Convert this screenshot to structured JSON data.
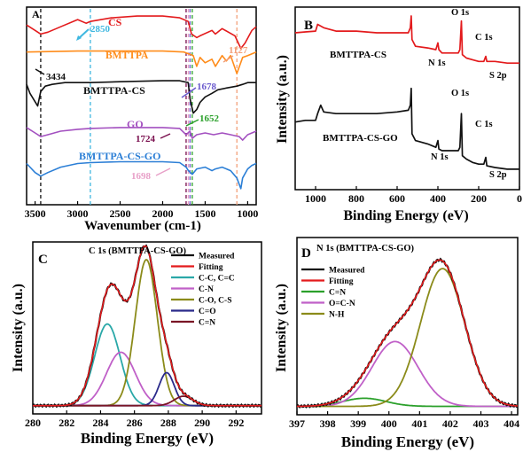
{
  "chart_data": [
    {
      "type": "line",
      "panel": "A",
      "xlabel": "Wavenumber (cm-1)",
      "ylabel": "",
      "xlim": [
        3600,
        900
      ],
      "xticks": [
        3500,
        3000,
        2500,
        2000,
        1500,
        1000
      ],
      "reference_lines": [
        {
          "x": 3434,
          "color": "#111111"
        },
        {
          "x": 2850,
          "color": "#3fb7e0"
        },
        {
          "x": 1724,
          "color": "#7a0f4e"
        },
        {
          "x": 1698,
          "color": "#e8a0c8"
        },
        {
          "x": 1652,
          "color": "#2ba02b"
        },
        {
          "x": 1678,
          "color": "#6a5acd"
        },
        {
          "x": 1127,
          "color": "#f3a07a"
        }
      ],
      "series": [
        {
          "name": "CS",
          "color": "#e31a1c",
          "offset": 0.93,
          "x": [
            3600,
            3500,
            3434,
            3350,
            3200,
            3000,
            2900,
            2850,
            2600,
            2300,
            2000,
            1800,
            1700,
            1660,
            1600,
            1560,
            1420,
            1380,
            1300,
            1150,
            1080,
            1030,
            950,
            900
          ],
          "y": [
            0.93,
            0.9,
            0.88,
            0.89,
            0.92,
            0.96,
            0.94,
            0.95,
            0.97,
            0.98,
            0.98,
            0.97,
            0.95,
            0.88,
            0.86,
            0.87,
            0.9,
            0.88,
            0.91,
            0.87,
            0.8,
            0.83,
            0.9,
            0.92
          ]
        },
        {
          "name": "BMTTPA",
          "color": "#ff8c1a",
          "offset": 0.78,
          "x": [
            3600,
            3000,
            2500,
            2000,
            1750,
            1640,
            1600,
            1560,
            1500,
            1420,
            1380,
            1300,
            1250,
            1200,
            1127,
            1060,
            1000,
            950,
            900
          ],
          "y": [
            0.78,
            0.785,
            0.785,
            0.785,
            0.78,
            0.76,
            0.7,
            0.75,
            0.72,
            0.74,
            0.7,
            0.76,
            0.73,
            0.76,
            0.66,
            0.75,
            0.76,
            0.77,
            0.78
          ]
        },
        {
          "name": "BMTTPA-CS",
          "color": "#111111",
          "offset": 0.6,
          "x": [
            3600,
            3560,
            3470,
            3434,
            3380,
            3300,
            3150,
            3000,
            2850,
            2500,
            2000,
            1800,
            1700,
            1678,
            1640,
            1600,
            1560,
            1500,
            1420,
            1350,
            1250,
            1127,
            1060,
            1000,
            950,
            900
          ],
          "y": [
            0.6,
            0.55,
            0.48,
            0.56,
            0.59,
            0.6,
            0.61,
            0.61,
            0.61,
            0.615,
            0.62,
            0.62,
            0.61,
            0.52,
            0.44,
            0.46,
            0.5,
            0.53,
            0.55,
            0.57,
            0.58,
            0.59,
            0.6,
            0.61,
            0.61,
            0.61
          ]
        },
        {
          "name": "GO",
          "color": "#a350c0",
          "offset": 0.34,
          "x": [
            3600,
            3500,
            3434,
            3350,
            3200,
            3000,
            2850,
            2500,
            2000,
            1800,
            1724,
            1680,
            1652,
            1600,
            1500,
            1400,
            1300,
            1200,
            1100,
            1060,
            1000,
            950,
            900
          ],
          "y": [
            0.36,
            0.33,
            0.31,
            0.32,
            0.34,
            0.35,
            0.355,
            0.36,
            0.36,
            0.355,
            0.32,
            0.34,
            0.3,
            0.32,
            0.33,
            0.32,
            0.33,
            0.32,
            0.31,
            0.29,
            0.32,
            0.33,
            0.34
          ]
        },
        {
          "name": "BMTTPA-CS-GO",
          "color": "#2c7fd6",
          "offset": 0.15,
          "x": [
            3600,
            3500,
            3434,
            3350,
            3200,
            3000,
            2850,
            2500,
            2000,
            1800,
            1724,
            1698,
            1652,
            1600,
            1500,
            1420,
            1380,
            1300,
            1200,
            1127,
            1080,
            1060,
            1000,
            950,
            900
          ],
          "y": [
            0.16,
            0.11,
            0.09,
            0.11,
            0.14,
            0.16,
            0.165,
            0.17,
            0.17,
            0.165,
            0.14,
            0.12,
            0.1,
            0.13,
            0.14,
            0.12,
            0.13,
            0.14,
            0.12,
            0.08,
            0.02,
            0.08,
            0.13,
            0.15,
            0.16
          ]
        }
      ],
      "annotations": [
        {
          "text": "CS",
          "color": "#e31a1c"
        },
        {
          "text": "2850",
          "color": "#3fb7e0"
        },
        {
          "text": "BMTTPA",
          "color": "#ff8c1a"
        },
        {
          "text": "1127",
          "color": "#f3a07a"
        },
        {
          "text": "3434",
          "color": "#111111"
        },
        {
          "text": "BMTTPA-CS",
          "color": "#111111"
        },
        {
          "text": "1678",
          "color": "#6a5acd"
        },
        {
          "text": "1652",
          "color": "#2ba02b"
        },
        {
          "text": "GO",
          "color": "#a350c0"
        },
        {
          "text": "1724",
          "color": "#7a0f4e"
        },
        {
          "text": "BMTTPA-CS-GO",
          "color": "#2c7fd6"
        },
        {
          "text": "1698",
          "color": "#e8a0c8"
        }
      ]
    },
    {
      "type": "line",
      "panel": "B",
      "xlabel": "Binding Energy (eV)",
      "ylabel": "Intensity (a.u.)",
      "xlim": [
        1100,
        0
      ],
      "xticks": [
        1000,
        800,
        600,
        400,
        200,
        0
      ],
      "series": [
        {
          "name": "BMTTPA-CS",
          "color": "#e31a1c",
          "x": [
            1100,
            1050,
            1000,
            990,
            960,
            900,
            800,
            700,
            600,
            545,
            535,
            531,
            527,
            510,
            450,
            410,
            400,
            395,
            380,
            330,
            300,
            292,
            285,
            280,
            260,
            230,
            200,
            175,
            165,
            160,
            120,
            60,
            0
          ],
          "y": [
            0.9,
            0.905,
            0.91,
            0.95,
            0.93,
            0.91,
            0.91,
            0.9,
            0.9,
            0.9,
            0.93,
            1.0,
            0.86,
            0.82,
            0.81,
            0.8,
            0.84,
            0.8,
            0.78,
            0.78,
            0.78,
            0.8,
            0.97,
            0.77,
            0.75,
            0.74,
            0.73,
            0.73,
            0.76,
            0.73,
            0.73,
            0.72,
            0.72
          ]
        },
        {
          "name": "BMTTPA-CS-GO",
          "color": "#111111",
          "x": [
            1100,
            1050,
            1000,
            990,
            975,
            960,
            900,
            800,
            700,
            600,
            545,
            535,
            531,
            527,
            510,
            450,
            410,
            400,
            395,
            380,
            330,
            300,
            292,
            285,
            280,
            260,
            230,
            200,
            175,
            165,
            160,
            120,
            60,
            0
          ],
          "y": [
            0.37,
            0.38,
            0.38,
            0.42,
            0.47,
            0.43,
            0.42,
            0.42,
            0.42,
            0.43,
            0.44,
            0.47,
            0.57,
            0.3,
            0.26,
            0.24,
            0.22,
            0.26,
            0.21,
            0.2,
            0.2,
            0.2,
            0.22,
            0.42,
            0.17,
            0.15,
            0.13,
            0.12,
            0.12,
            0.16,
            0.11,
            0.1,
            0.09,
            0.09
          ]
        }
      ],
      "annotations": [
        "O 1s",
        "N 1s",
        "C 1s",
        "S 2p",
        "BMTTPA-CS",
        "O 1s",
        "BMTTPA-CS-GO",
        "C 1s",
        "N 1s",
        "S 2p"
      ]
    },
    {
      "type": "line",
      "panel": "C",
      "title": "C 1s (BMTTPA-CS-GO)",
      "xlabel": "Binding Energy (eV)",
      "ylabel": "Intensity (a.u.)",
      "xlim": [
        280,
        293.5
      ],
      "xticks": [
        280,
        282,
        284,
        286,
        288,
        290,
        292
      ],
      "components": [
        {
          "name": "C-C, C=C",
          "color": "#2aa8a8",
          "center": 284.4,
          "height": 0.52,
          "sigma": 0.75
        },
        {
          "name": "C-N",
          "color": "#c060c8",
          "center": 285.2,
          "height": 0.34,
          "sigma": 0.85
        },
        {
          "name": "C-O, C-S",
          "color": "#8b8b1a",
          "center": 286.7,
          "height": 0.93,
          "sigma": 0.65
        },
        {
          "name": "C=O",
          "color": "#2a2a8a",
          "center": 287.9,
          "height": 0.21,
          "sigma": 0.45
        },
        {
          "name": "C=N",
          "color": "#7a1525",
          "center": 288.9,
          "height": 0.06,
          "sigma": 0.55
        }
      ],
      "legend": [
        "Measured",
        "Fitting",
        "C-C, C=C",
        "C-N",
        "C-O, C-S",
        "C=O",
        "C=N"
      ],
      "legend_colors": [
        "#111111",
        "#e31a1c",
        "#2aa8a8",
        "#c060c8",
        "#8b8b1a",
        "#2a2a8a",
        "#7a1525"
      ],
      "legend_position": "top-right"
    },
    {
      "type": "line",
      "panel": "D",
      "title": "N 1s (BMTTPA-CS-GO)",
      "xlabel": "Binding Energy (eV)",
      "ylabel": "Intensity (a.u.)",
      "xlim": [
        397,
        404.2
      ],
      "xticks": [
        397,
        398,
        399,
        400,
        401,
        402,
        403,
        404
      ],
      "components": [
        {
          "name": "C=N",
          "color": "#2ba02b",
          "center": 399.2,
          "height": 0.05,
          "sigma": 0.7
        },
        {
          "name": "O=C-N",
          "color": "#c060c8",
          "center": 400.2,
          "height": 0.4,
          "sigma": 0.75
        },
        {
          "name": "N-H",
          "color": "#8b8b1a",
          "center": 401.75,
          "height": 0.85,
          "sigma": 0.72
        }
      ],
      "legend": [
        "Measured",
        "Fitting",
        "C=N",
        "O=C-N",
        "N-H"
      ],
      "legend_colors": [
        "#111111",
        "#e31a1c",
        "#2ba02b",
        "#c060c8",
        "#8b8b1a"
      ],
      "legend_position": "top-left"
    }
  ]
}
